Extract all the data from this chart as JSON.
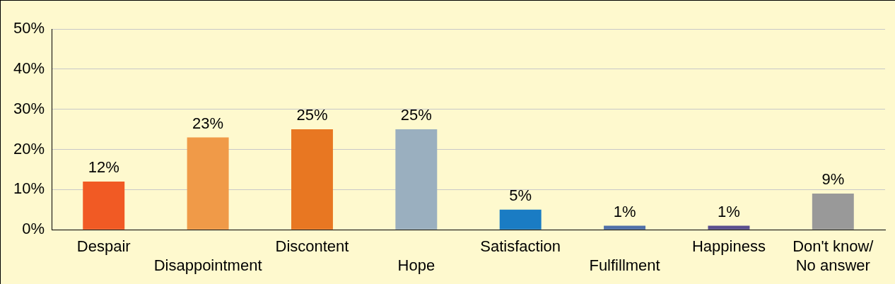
{
  "chart_data": {
    "type": "bar",
    "categories": [
      "Despair",
      "Disappointment",
      "Discontent",
      "Hope",
      "Satisfaction",
      "Fulfillment",
      "Happiness",
      "Don't know/ No answer"
    ],
    "values": [
      12,
      23,
      25,
      25,
      5,
      1,
      1,
      9
    ],
    "colors": [
      "#f15a24",
      "#f09a48",
      "#e87722",
      "#9aafbf",
      "#1a7cc4",
      "#4f6fa8",
      "#5a4f8f",
      "#999999"
    ],
    "ylim": [
      0,
      50
    ],
    "yticks": [
      {
        "value": 0,
        "label": "0%"
      },
      {
        "value": 10,
        "label": "10%"
      },
      {
        "value": 20,
        "label": "20%"
      },
      {
        "value": 30,
        "label": "30%"
      },
      {
        "value": 40,
        "label": "40%"
      },
      {
        "value": 50,
        "label": "50%"
      }
    ],
    "value_labels": [
      "12%",
      "23%",
      "25%",
      "25%",
      "5%",
      "1%",
      "1%",
      "9%"
    ],
    "grid": "y",
    "legend": false
  }
}
